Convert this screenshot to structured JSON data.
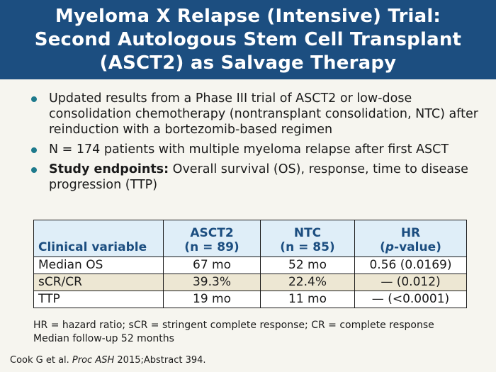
{
  "title": {
    "line1": "Myeloma X Relapse (Intensive) Trial:",
    "line2": "Second Autologous Stem Cell Transplant",
    "line3": "(ASCT2) as Salvage Therapy"
  },
  "bullets": [
    {
      "bold": "",
      "text": "Updated results from a Phase III trial of ASCT2 or low-dose consolidation chemotherapy (nontransplant consolidation, NTC) after reinduction with a bortezomib-based regimen"
    },
    {
      "bold": "",
      "text": "N = 174 patients with multiple myeloma relapse after first ASCT"
    },
    {
      "bold": "Study endpoints:",
      "text": " Overall survival (OS), response, time to disease progression (TTP)"
    }
  ],
  "table": {
    "headers": {
      "variable": "Clinical variable",
      "asct2_line1": "ASCT2",
      "asct2_line2": "(n = 89)",
      "ntc_line1": "NTC",
      "ntc_line2": "(n = 85)",
      "hr_line1": "HR",
      "hr_line2_open": "(",
      "hr_line2_italic": "p",
      "hr_line2_rest": "-value)"
    },
    "rows": [
      {
        "variable": "Median OS",
        "asct2": "67 mo",
        "ntc": "52 mo",
        "hr": "0.56 (0.0169)"
      },
      {
        "variable": "sCR/CR",
        "asct2": "39.3%",
        "ntc": "22.4%",
        "hr": "— (0.012)"
      },
      {
        "variable": "TTP",
        "asct2": "19 mo",
        "ntc": "11 mo",
        "hr": "— (<0.0001)"
      }
    ]
  },
  "footnotes": {
    "line1": "HR = hazard ratio; sCR = stringent complete response; CR = complete response",
    "line2": "Median follow-up 52 months"
  },
  "citation": {
    "authors": "Cook G et al. ",
    "journal": "Proc ASH",
    "rest": " 2015;Abstract 394."
  },
  "colors": {
    "title_bg": "#1c4e80",
    "bullet": "#1e7a8c",
    "table_header_bg": "#dfeef8",
    "table_header_text": "#1c4e80",
    "row_alt_bg": "#ede7d3",
    "page_bg": "#f6f5ef"
  }
}
